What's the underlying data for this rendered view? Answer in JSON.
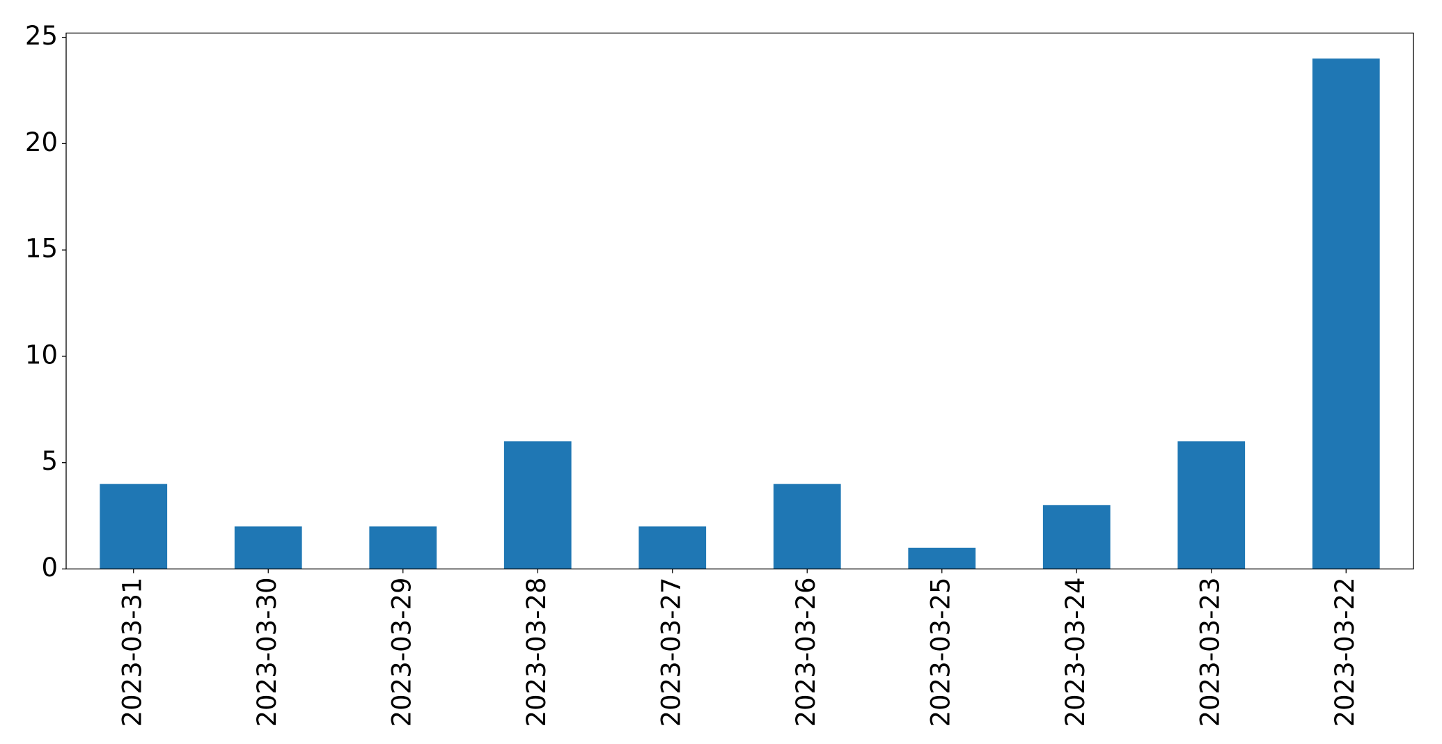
{
  "chart_data": {
    "type": "bar",
    "categories": [
      "2023-03-31",
      "2023-03-30",
      "2023-03-29",
      "2023-03-28",
      "2023-03-27",
      "2023-03-26",
      "2023-03-25",
      "2023-03-24",
      "2023-03-23",
      "2023-03-22"
    ],
    "values": [
      4,
      2,
      2,
      6,
      2,
      4,
      1,
      3,
      6,
      24
    ],
    "color": "#1f77b4",
    "ylim": [
      0,
      25.2
    ],
    "yticks": [
      0,
      5,
      10,
      15,
      20,
      25
    ],
    "grid": false
  }
}
